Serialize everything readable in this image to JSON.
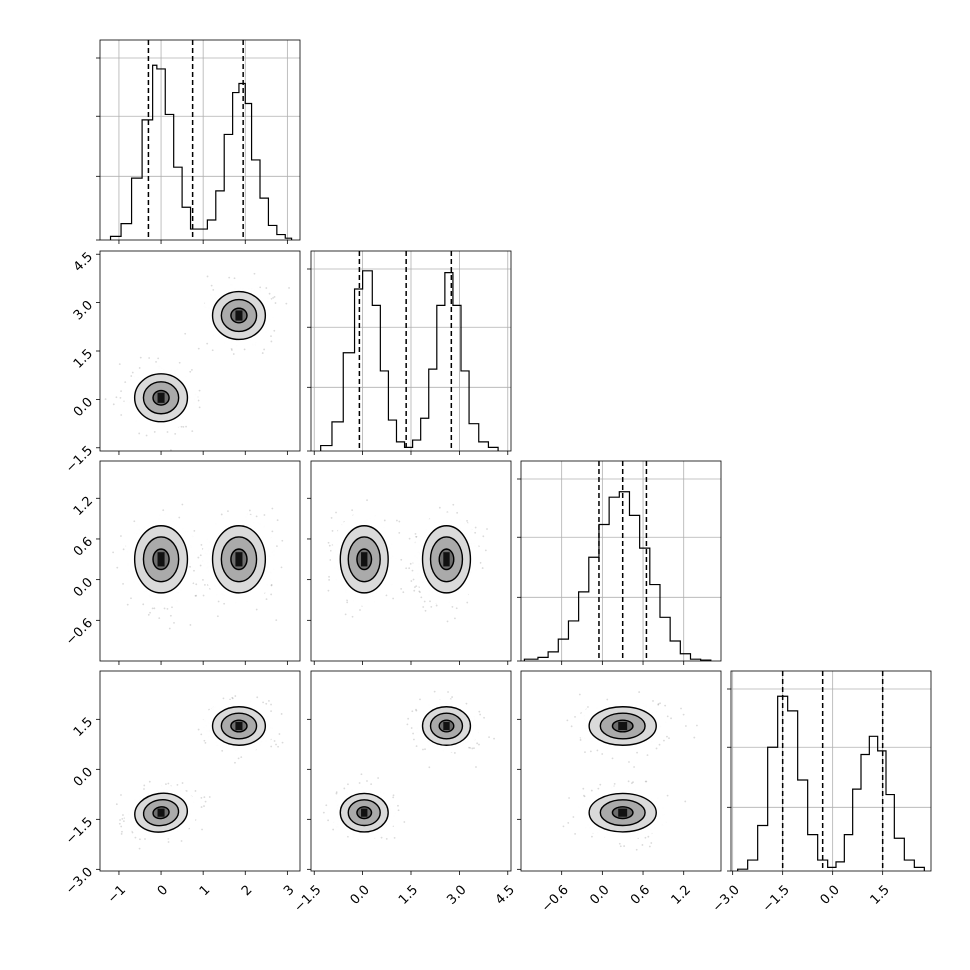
{
  "chart_data": {
    "type": "corner",
    "grid": true,
    "parameters": [
      {
        "range": [
          -1.45,
          3.3
        ],
        "ticks": [
          -1,
          0,
          1,
          2,
          3
        ],
        "tick_labels": [
          "−1",
          "0",
          "1",
          "2",
          "3"
        ],
        "quantiles": [
          -0.3,
          0.75,
          1.95
        ],
        "modes": [
          {
            "mean": 0.0,
            "sd": 0.38
          },
          {
            "mean": 1.85,
            "sd": 0.38
          }
        ]
      },
      {
        "range": [
          -1.6,
          4.6
        ],
        "ticks": [
          -1.5,
          0.0,
          1.5,
          3.0,
          4.5
        ],
        "tick_labels": [
          "−1.5",
          "0.0",
          "1.5",
          "3.0",
          "4.5"
        ],
        "quantiles": [
          -0.1,
          1.35,
          2.75
        ],
        "modes": [
          {
            "mean": 0.05,
            "sd": 0.45
          },
          {
            "mean": 2.6,
            "sd": 0.45
          }
        ]
      },
      {
        "range": [
          -1.2,
          1.75
        ],
        "ticks": [
          -0.6,
          0.0,
          0.6,
          1.2
        ],
        "tick_labels": [
          "−0.6",
          "0.0",
          "0.6",
          "1.2"
        ],
        "quantiles": [
          -0.05,
          0.3,
          0.65
        ],
        "modes": [
          {
            "mean": 0.3,
            "sd": 0.3
          }
        ]
      },
      {
        "range": [
          -3.05,
          2.95
        ],
        "ticks": [
          -3.0,
          -1.5,
          0.0,
          1.5
        ],
        "tick_labels": [
          "−3.0",
          "−1.5",
          "0.0",
          "1.5"
        ],
        "quantiles": [
          -1.5,
          -0.3,
          1.5
        ],
        "modes": [
          {
            "mean": -1.3,
            "sd": 0.35
          },
          {
            "mean": 1.3,
            "sd": 0.35
          }
        ]
      }
    ],
    "histograms": [
      {
        "bin_edges": [
          -1.2,
          -0.95,
          -0.7,
          -0.45,
          -0.2,
          -0.1,
          0.1,
          0.3,
          0.5,
          0.7,
          0.9,
          1.1,
          1.3,
          1.5,
          1.7,
          1.85,
          2.0,
          2.15,
          2.35,
          2.55,
          2.75,
          2.95,
          3.1
        ],
        "counts": [
          0.02,
          0.09,
          0.34,
          0.66,
          0.96,
          0.94,
          0.69,
          0.4,
          0.18,
          0.06,
          0.06,
          0.11,
          0.27,
          0.58,
          0.81,
          0.86,
          0.75,
          0.44,
          0.23,
          0.08,
          0.03,
          0.01
        ]
      },
      {
        "bin_edges": [
          -1.3,
          -0.95,
          -0.6,
          -0.25,
          0.0,
          0.3,
          0.55,
          0.8,
          1.05,
          1.3,
          1.55,
          1.8,
          2.05,
          2.3,
          2.55,
          2.8,
          3.05,
          3.3,
          3.6,
          3.9,
          4.2
        ],
        "counts": [
          0.03,
          0.16,
          0.54,
          0.89,
          0.99,
          0.8,
          0.44,
          0.17,
          0.05,
          0.02,
          0.06,
          0.18,
          0.45,
          0.8,
          0.98,
          0.8,
          0.44,
          0.15,
          0.05,
          0.02
        ]
      },
      {
        "bin_edges": [
          -1.15,
          -0.95,
          -0.8,
          -0.65,
          -0.5,
          -0.35,
          -0.2,
          -0.05,
          0.1,
          0.25,
          0.4,
          0.55,
          0.7,
          0.85,
          1.0,
          1.15,
          1.3,
          1.45,
          1.6
        ],
        "counts": [
          0.01,
          0.02,
          0.05,
          0.12,
          0.22,
          0.38,
          0.57,
          0.75,
          0.9,
          0.93,
          0.8,
          0.62,
          0.42,
          0.24,
          0.11,
          0.04,
          0.01,
          0.005
        ]
      },
      {
        "bin_edges": [
          -2.85,
          -2.55,
          -2.25,
          -1.95,
          -1.65,
          -1.35,
          -1.05,
          -0.75,
          -0.45,
          -0.15,
          0.1,
          0.35,
          0.6,
          0.85,
          1.1,
          1.35,
          1.6,
          1.85,
          2.15,
          2.45,
          2.75
        ],
        "counts": [
          0.01,
          0.06,
          0.25,
          0.68,
          0.96,
          0.88,
          0.5,
          0.2,
          0.06,
          0.02,
          0.05,
          0.2,
          0.45,
          0.64,
          0.74,
          0.66,
          0.42,
          0.18,
          0.06,
          0.02
        ]
      }
    ],
    "pairs": [
      {
        "row": 1,
        "col": 0,
        "clusters": [
          {
            "x": 0.0,
            "y": 0.05,
            "sx": 0.38,
            "sy": 0.45,
            "rho": 0.0
          },
          {
            "x": 1.85,
            "y": 2.6,
            "sx": 0.38,
            "sy": 0.45,
            "rho": 0.0
          }
        ]
      },
      {
        "row": 2,
        "col": 0,
        "clusters": [
          {
            "x": 0.0,
            "y": 0.3,
            "sx": 0.38,
            "sy": 0.3,
            "rho": 0.0
          },
          {
            "x": 1.85,
            "y": 0.3,
            "sx": 0.38,
            "sy": 0.3,
            "rho": 0.0
          }
        ]
      },
      {
        "row": 2,
        "col": 1,
        "clusters": [
          {
            "x": 0.05,
            "y": 0.3,
            "sx": 0.45,
            "sy": 0.3,
            "rho": 0.0
          },
          {
            "x": 2.6,
            "y": 0.3,
            "sx": 0.45,
            "sy": 0.3,
            "rho": 0.0
          }
        ]
      },
      {
        "row": 3,
        "col": 0,
        "clusters": [
          {
            "x": 0.0,
            "y": -1.3,
            "sx": 0.38,
            "sy": 0.35,
            "rho": 0.25
          },
          {
            "x": 1.85,
            "y": 1.3,
            "sx": 0.38,
            "sy": 0.35,
            "rho": 0.0
          }
        ]
      },
      {
        "row": 3,
        "col": 1,
        "clusters": [
          {
            "x": 0.05,
            "y": -1.3,
            "sx": 0.45,
            "sy": 0.35,
            "rho": 0.0
          },
          {
            "x": 2.6,
            "y": 1.3,
            "sx": 0.45,
            "sy": 0.35,
            "rho": 0.0
          }
        ]
      },
      {
        "row": 3,
        "col": 2,
        "clusters": [
          {
            "x": 0.3,
            "y": -1.3,
            "sx": 0.3,
            "sy": 0.35,
            "rho": 0.0
          },
          {
            "x": 0.3,
            "y": 1.3,
            "sx": 0.3,
            "sy": 0.35,
            "rho": 0.0
          }
        ]
      }
    ]
  }
}
